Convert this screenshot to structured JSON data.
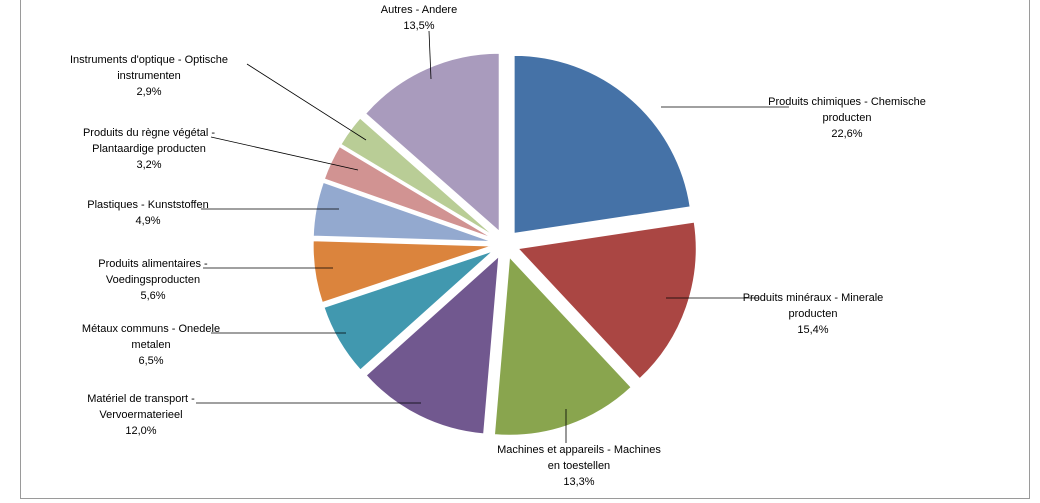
{
  "chart_data": {
    "type": "pie",
    "title": "",
    "slices": [
      {
        "label_lines": [
          "Produits chimiques - Chemische",
          "producten"
        ],
        "percent_text": "22,6%",
        "value": 22.6,
        "color": "#4572A7"
      },
      {
        "label_lines": [
          "Produits minéraux - Minerale",
          "producten"
        ],
        "percent_text": "15,4%",
        "value": 15.4,
        "color": "#AA4643"
      },
      {
        "label_lines": [
          "Machines et appareils - Machines",
          "en toestellen"
        ],
        "percent_text": "13,3%",
        "value": 13.3,
        "color": "#89A54E"
      },
      {
        "label_lines": [
          "Matériel de transport -",
          "Vervoermaterieel"
        ],
        "percent_text": "12,0%",
        "value": 12.0,
        "color": "#71588F"
      },
      {
        "label_lines": [
          "Métaux communs - Onedele",
          "metalen"
        ],
        "percent_text": "6,5%",
        "value": 6.5,
        "color": "#4198AF"
      },
      {
        "label_lines": [
          "Produits alimentaires -",
          "Voedingsproducten"
        ],
        "percent_text": "5,6%",
        "value": 5.6,
        "color": "#DB843D"
      },
      {
        "label_lines": [
          "Plastiques - Kunststoffen"
        ],
        "percent_text": "4,9%",
        "value": 4.9,
        "color": "#93A9CF"
      },
      {
        "label_lines": [
          "Produits du règne végétal -",
          "Plantaardige producten"
        ],
        "percent_text": "3,2%",
        "value": 3.2,
        "color": "#D19392"
      },
      {
        "label_lines": [
          "Instruments d'optique - Optische",
          "instrumenten"
        ],
        "percent_text": "2,9%",
        "value": 2.9,
        "color": "#B9CD96"
      },
      {
        "label_lines": [
          "Autres - Andere"
        ],
        "percent_text": "13,5%",
        "value": 13.5,
        "color": "#A99BBD"
      }
    ],
    "legend": "none",
    "labels": "outside-with-leader-lines"
  }
}
